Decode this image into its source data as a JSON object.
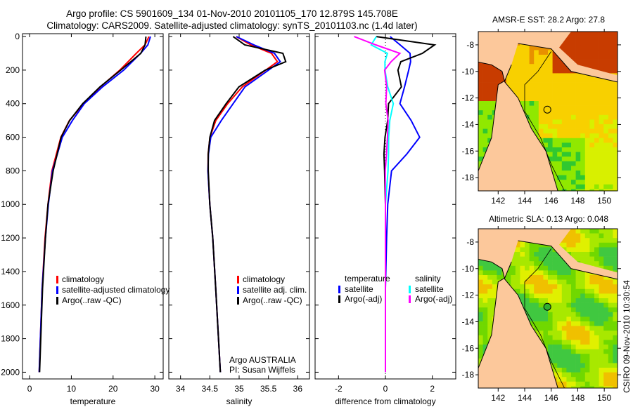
{
  "header": {
    "line1": "Argo profile: CS 5901609_134 01-Nov-2010 20101105_170 12.879S 145.708E",
    "line2": "Climatology: CARS2009. Satellite-adjusted climatology: synTS_20101103.nc (1.4d later)"
  },
  "side_label": "CSIRO 09-Nov-2010 10:30:54",
  "colors": {
    "climatology": "#ff0000",
    "satellite": "#0000ff",
    "argo": "#000000",
    "sal_satellite": "#00ffff",
    "sal_argo": "#ff00ff",
    "land": "#fcc89b"
  },
  "chart_data": [
    {
      "type": "line",
      "xlabel": "temperature",
      "ylabel": "",
      "xlim": [
        -1.7,
        32
      ],
      "ylim": [
        2040,
        -17
      ],
      "xticks": [
        0,
        10,
        20,
        30
      ],
      "yticks": [
        0,
        200,
        400,
        600,
        800,
        1000,
        1200,
        1400,
        1600,
        1800,
        2000
      ],
      "legend": {
        "placement": "bottom-right",
        "entries": [
          "climatology",
          "satellite-adjusted climatology",
          "Argo(..raw -QC)"
        ]
      },
      "depth": [
        0,
        50,
        100,
        200,
        300,
        400,
        500,
        600,
        800,
        1000,
        1200,
        1500,
        2000
      ],
      "series": [
        {
          "name": "climatology",
          "values": [
            28.6,
            27.6,
            25.5,
            21.5,
            16.8,
            12.8,
            9.4,
            7.4,
            5.4,
            4.4,
            3.7,
            3.0,
            2.3
          ]
        },
        {
          "name": "satellite-adjusted climatology",
          "values": [
            28.8,
            28.2,
            26.5,
            22.5,
            17.5,
            13.2,
            10.4,
            8.0,
            5.6,
            4.5,
            3.8,
            3.0,
            2.3
          ]
        },
        {
          "name": "Argo(..raw -QC)",
          "values": [
            28.0,
            27.8,
            26.8,
            22.0,
            17.0,
            12.8,
            9.6,
            7.5,
            5.5,
            4.4,
            3.8,
            3.1,
            2.4
          ]
        }
      ]
    },
    {
      "type": "line",
      "xlabel": "salinity",
      "xlim": [
        33.8,
        36.2
      ],
      "ylim": [
        2040,
        -17
      ],
      "xticks": [
        34,
        34.5,
        35,
        35.5,
        36
      ],
      "yticks": [
        0,
        200,
        400,
        600,
        800,
        1000,
        1200,
        1400,
        1600,
        1800,
        2000
      ],
      "legend": {
        "placement": "bottom-right",
        "entries": [
          "climatology",
          "satellite adj. clim.",
          "Argo(..raw -QC)"
        ]
      },
      "annotation": [
        "Argo AUSTRALIA",
        "PI: Susan Wijffels"
      ],
      "depth": [
        0,
        50,
        100,
        150,
        200,
        300,
        400,
        500,
        600,
        700,
        800,
        1000,
        1200,
        1500,
        2000
      ],
      "series": [
        {
          "name": "climatology",
          "values": [
            34.95,
            35.2,
            35.55,
            35.65,
            35.45,
            35.05,
            34.8,
            34.6,
            34.5,
            34.47,
            34.47,
            34.5,
            34.55,
            34.6,
            34.68
          ]
        },
        {
          "name": "satellite adj. clim.",
          "values": [
            34.95,
            35.25,
            35.6,
            35.7,
            35.5,
            35.1,
            34.9,
            34.7,
            34.52,
            34.48,
            34.47,
            34.5,
            34.55,
            34.6,
            34.68
          ]
        },
        {
          "name": "Argo(..raw -QC)",
          "values": [
            34.9,
            35.1,
            35.75,
            35.8,
            35.45,
            35.0,
            34.78,
            34.58,
            34.5,
            34.47,
            34.47,
            34.5,
            34.55,
            34.6,
            34.68
          ]
        }
      ]
    },
    {
      "type": "line",
      "xlabel": "difference from climatology",
      "xlim": [
        -3,
        3
      ],
      "ylim": [
        2040,
        -17
      ],
      "xticks": [
        -2,
        0,
        2
      ],
      "yticks": [
        0,
        200,
        400,
        600,
        800,
        1000,
        1200,
        1400,
        1600,
        1800,
        2000
      ],
      "legend": {
        "placement": "bottom",
        "groups": [
          {
            "title": "temperature",
            "entries": [
              "satellite",
              "Argo(-adj)"
            ]
          },
          {
            "title": "salinity",
            "entries": [
              "satellite",
              "Argo(-adj)"
            ]
          }
        ]
      },
      "depth": [
        0,
        50,
        100,
        150,
        200,
        300,
        400,
        500,
        600,
        700,
        800,
        1000,
        1200,
        1500,
        2000
      ],
      "series": [
        {
          "name": "temperature satellite",
          "values": [
            0.2,
            0.6,
            1.0,
            1.0,
            0.9,
            0.7,
            0.5,
            1.0,
            1.4,
            0.9,
            0.3,
            0.1,
            0.05,
            0.0,
            0.0
          ]
        },
        {
          "name": "temperature Argo(-adj)",
          "values": [
            -0.5,
            2.0,
            1.5,
            0.6,
            0.5,
            0.7,
            0.2,
            0.2,
            0.1,
            0.05,
            0.05,
            0.0,
            0.0,
            0.0,
            0.0
          ]
        },
        {
          "name": "salinity satellite",
          "values": [
            -0.3,
            -0.5,
            0.2,
            0.1,
            0.1,
            0.2,
            0.4,
            0.2,
            0.1,
            0.05,
            0.0,
            0.0,
            0.0,
            0.0,
            0.0
          ]
        },
        {
          "name": "salinity Argo(-adj)",
          "values": [
            -1.3,
            -0.4,
            0.6,
            0.2,
            -0.1,
            -0.05,
            -0.1,
            0.0,
            0.0,
            0.0,
            0.0,
            0.0,
            0.0,
            0.0,
            0.0
          ]
        }
      ]
    },
    {
      "type": "heatmap",
      "title": "AMSR-E SST: 28.2 Argo: 27.8",
      "xticks": [
        142,
        144,
        146,
        148,
        150
      ],
      "yticks": [
        -8,
        -10,
        -12,
        -14,
        -16,
        -18
      ],
      "xlim": [
        140.5,
        151
      ],
      "ylim": [
        -19,
        -7
      ],
      "marker": [
        145.708,
        -12.879
      ]
    },
    {
      "type": "heatmap",
      "title": "Altimetric SLA: 0.13 Argo: 0.048",
      "xticks": [
        142,
        144,
        146,
        148,
        150
      ],
      "yticks": [
        -8,
        -10,
        -12,
        -14,
        -16,
        -18
      ],
      "xlim": [
        140.5,
        151
      ],
      "ylim": [
        -19,
        -7
      ],
      "marker": [
        145.708,
        -12.879
      ]
    }
  ]
}
